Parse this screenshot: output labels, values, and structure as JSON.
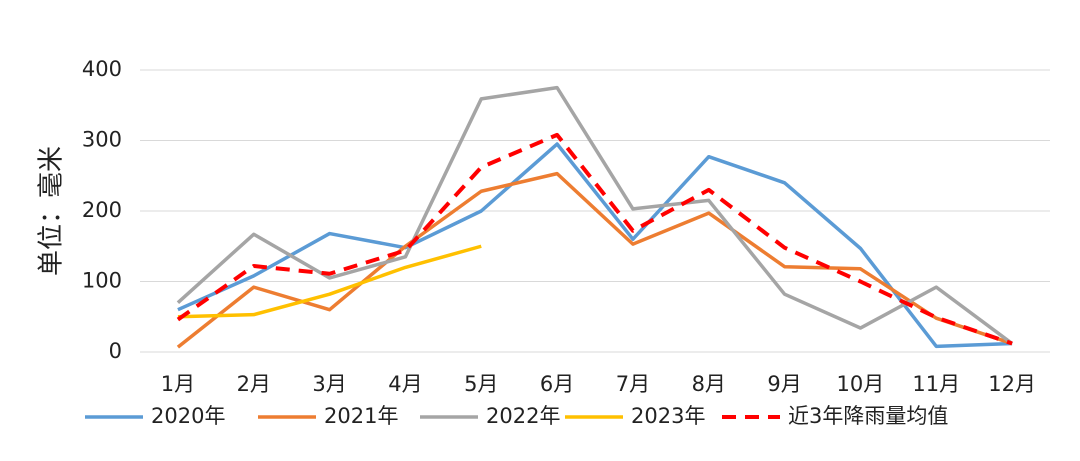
{
  "chart_data": {
    "type": "line",
    "y_label": "单位：毫米",
    "categories": [
      "1月",
      "2月",
      "3月",
      "4月",
      "5月",
      "6月",
      "7月",
      "8月",
      "9月",
      "10月",
      "11月",
      "12月"
    ],
    "series": [
      {
        "name": "2020年",
        "color": "#5b9bd5",
        "values": [
          60,
          108,
          168,
          148,
          200,
          295,
          160,
          277,
          240,
          147,
          8,
          12
        ]
      },
      {
        "name": "2021年",
        "color": "#ed7d31",
        "values": [
          7,
          92,
          60,
          150,
          228,
          253,
          153,
          197,
          121,
          118,
          48,
          12
        ]
      },
      {
        "name": "2022年",
        "color": "#a5a5a5",
        "values": [
          70,
          167,
          105,
          135,
          359,
          375,
          203,
          215,
          82,
          34,
          92,
          12
        ]
      },
      {
        "name": "2023年",
        "color": "#ffc000",
        "values": [
          50,
          53,
          82,
          120,
          150,
          null,
          null,
          null,
          null,
          null,
          null,
          null
        ]
      },
      {
        "name": "近3年降雨量均值",
        "color": "#ff0000",
        "dashed": true,
        "values": [
          46,
          122,
          111,
          144,
          262,
          308,
          172,
          230,
          148,
          100,
          49,
          12
        ]
      }
    ],
    "ylim": [
      0,
      400
    ],
    "yticks": [
      0,
      100,
      200,
      300,
      400
    ],
    "grid": true,
    "legend": "bottom"
  }
}
